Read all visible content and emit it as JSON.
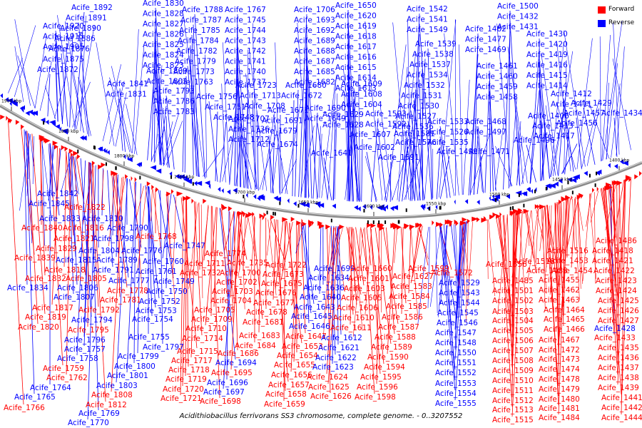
{
  "caption": "Acidithiobacillus ferrivorans SS3 chromosome, complete genome. - 0..3207552",
  "legend": {
    "forward": {
      "label": "Forward",
      "color": "#ff0000"
    },
    "reverse": {
      "label": "Reverse",
      "color": "#0000ff"
    }
  },
  "kbp_ticks": [
    "1900 kbp",
    "1850 kbp",
    "1800 kbp",
    "1750 kbp",
    "1700 kbp",
    "1650 kbp",
    "1600 kbp",
    "1550 kbp",
    "1500 kbp",
    "1450 kbp",
    "1400 kbp"
  ],
  "top_labels": [
    "Acife_1892",
    "Acife_1891",
    "Acife_1890",
    "Acife_1886",
    "Acife_1876",
    "Acife_1875",
    "Acife_1872",
    "Acife_1920",
    "Acife_1915",
    "Acife_1905",
    "Acife_1841",
    "Acife_1831",
    "Acife_1830",
    "Acife_1828",
    "Acife_1827",
    "Acife_1826",
    "Acife_1825",
    "Acife_1824",
    "Acife_1823",
    "Acife_1809",
    "Acife_1802",
    "Acife_1793",
    "Acife_1786",
    "Acife_1783",
    "Acife_1788",
    "Acife_1787",
    "Acife_1785",
    "Acife_1784",
    "Acife_1782",
    "Acife_1779",
    "Acife_1773",
    "Acife_1763",
    "Acife_1756",
    "Acife_1751",
    "Acife_1748",
    "Acife_1767",
    "Acife_1745",
    "Acife_1744",
    "Acife_1743",
    "Acife_1742",
    "Acife_1741",
    "Acife_1740",
    "Acife_1737",
    "Acife_1723",
    "Acife_1713",
    "Acife_1708",
    "Acife_1707",
    "Acife_1736",
    "Acife_1712",
    "Acife_1706",
    "Acife_1693",
    "Acife_1692",
    "Acife_1689",
    "Acife_1688",
    "Acife_1687",
    "Acife_1685",
    "Acife_1682",
    "Acife_1680",
    "Acife_1672",
    "Acife_1671",
    "Acife_1691",
    "Acife_1679",
    "Acife_1674",
    "Acife_1690",
    "Acife_1649",
    "Acife_1650",
    "Acife_1620",
    "Acife_1619",
    "Acife_1618",
    "Acife_1617",
    "Acife_1616",
    "Acife_1615",
    "Acife_1614",
    "Acife_1613",
    "Acife_1609",
    "Acife_1608",
    "Acife_1604",
    "Acife_1629",
    "Acife_1628",
    "Acife_1607",
    "Acife_1641",
    "Acife_1602",
    "Acife_1593",
    "Acife_1592",
    "Acife_1581",
    "Acife_1591",
    "Acife_1576",
    "Acife_1542",
    "Acife_1541",
    "Acife_1549",
    "Acife_1539",
    "Acife_1538",
    "Acife_1537",
    "Acife_1534",
    "Acife_1532",
    "Acife_1531",
    "Acife_1530",
    "Acife_1527",
    "Acife_1536",
    "Acife_1533",
    "Acife_1526",
    "Acife_1535",
    "Acife_1499",
    "Acife_1482",
    "Acife_1477",
    "Acife_1469",
    "Acife_1461",
    "Acife_1460",
    "Acife_1459",
    "Acife_1458",
    "Acife_1468",
    "Acife_1497",
    "Acife_1496",
    "Acife_1471",
    "Acife_1500",
    "Acife_1432",
    "Acife_1431",
    "Acife_1430",
    "Acife_1420",
    "Acife_1419",
    "Acife_1416",
    "Acife_1415",
    "Acife_1414",
    "Acife_1412",
    "Acife_1411",
    "Acife_1429",
    "Acife_1406",
    "Acife_1457",
    "Acife_1413",
    "Acife_1456",
    "Acife_1417",
    "Acife_1434",
    "Acife_1385"
  ],
  "bottom_labels": [
    "Acife_1842",
    "Acife_1845",
    "Acife_1822",
    "Acife_1833",
    "Acife_1810",
    "Acife_1840",
    "Acife_1816",
    "Acife_1790",
    "Acife_1821",
    "Acife_1798",
    "Acife_1768",
    "Acife_1829",
    "Acife_1804",
    "Acife_1776",
    "Acife_1747",
    "Acife_1839",
    "Acife_1815",
    "Acife_1789",
    "Acife_1760",
    "Acife_1818",
    "Acife_1791",
    "Acife_1761",
    "Acife_1832",
    "Acife_1805",
    "Acife_1777",
    "Acife_1749",
    "Acife_1834",
    "Acife_1806",
    "Acife_1778",
    "Acife_1750",
    "Acife_1807",
    "Acife_1781",
    "Acife_1752",
    "Acife_1817",
    "Acife_1792",
    "Acife_1753",
    "Acife_1819",
    "Acife_1794",
    "Acife_1754",
    "Acife_1820",
    "Acife_1795",
    "Acife_1755",
    "Acife_1796",
    "Acife_1757",
    "Acife_1797",
    "Acife_1758",
    "Acife_1799",
    "Acife_1759",
    "Acife_1800",
    "Acife_1762",
    "Acife_1801",
    "Acife_1764",
    "Acife_1803",
    "Acife_1765",
    "Acife_1808",
    "Acife_1766",
    "Acife_1812",
    "Acife_1769",
    "Acife_1770",
    "Acife_1774",
    "Acife_1711",
    "Acife_1732",
    "Acife_1735",
    "Acife_1700",
    "Acife_1702",
    "Acife_1703",
    "Acife_1704",
    "Acife_1705",
    "Acife_1709",
    "Acife_1710",
    "Acife_1714",
    "Acife_1715",
    "Acife_1717",
    "Acife_1718",
    "Acife_1719",
    "Acife_1720",
    "Acife_1721",
    "Acife_1722",
    "Acife_1673",
    "Acife_1675",
    "Acife_1676",
    "Acife_1677",
    "Acife_1678",
    "Acife_1681",
    "Acife_1683",
    "Acife_1684",
    "Acife_1686",
    "Acife_1694",
    "Acife_1695",
    "Acife_1696",
    "Acife_1697",
    "Acife_1698",
    "Acife_1699",
    "Acife_1634",
    "Acife_1636",
    "Acife_1640",
    "Acife_1643",
    "Acife_1645",
    "Acife_1646",
    "Acife_1647",
    "Acife_1653",
    "Acife_1654",
    "Acife_1655",
    "Acife_1656",
    "Acife_1657",
    "Acife_1658",
    "Acife_1659",
    "Acife_1660",
    "Acife_1601",
    "Acife_1603",
    "Acife_1605",
    "Acife_1606",
    "Acife_1610",
    "Acife_1611",
    "Acife_1612",
    "Acife_1621",
    "Acife_1622",
    "Acife_1623",
    "Acife_1624",
    "Acife_1625",
    "Acife_1626",
    "Acife_1627",
    "Acife_1583",
    "Acife_1584",
    "Acife_1585",
    "Acife_1586",
    "Acife_1587",
    "Acife_1588",
    "Acife_1589",
    "Acife_1590",
    "Acife_1594",
    "Acife_1595",
    "Acife_1596",
    "Acife_1598",
    "Acife_1599",
    "Acife_1572",
    "Acife_1529",
    "Acife_1543",
    "Acife_1544",
    "Acife_1545",
    "Acife_1546",
    "Acife_1547",
    "Acife_1548",
    "Acife_1550",
    "Acife_1551",
    "Acife_1552",
    "Acife_1553",
    "Acife_1554",
    "Acife_1555",
    "Acife_1556",
    "Acife_1518",
    "Acife_1483",
    "Acife_1485",
    "Acife_1501",
    "Acife_1502",
    "Acife_1503",
    "Acife_1504",
    "Acife_1505",
    "Acife_1506",
    "Acife_1507",
    "Acife_1508",
    "Acife_1509",
    "Acife_1510",
    "Acife_1511",
    "Acife_1512",
    "Acife_1513",
    "Acife_1515",
    "Acife_1516",
    "Acife_1453",
    "Acife_1454",
    "Acife_1455",
    "Acife_1462",
    "Acife_1463",
    "Acife_1464",
    "Acife_1465",
    "Acife_1466",
    "Acife_1467",
    "Acife_1472",
    "Acife_1473",
    "Acife_1474",
    "Acife_1478",
    "Acife_1479",
    "Acife_1480",
    "Acife_1481",
    "Acife_1484",
    "Acife_1486",
    "Acife_1418",
    "Acife_1421",
    "Acife_1422",
    "Acife_1423",
    "Acife_1424",
    "Acife_1425",
    "Acife_1426",
    "Acife_1427",
    "Acife_1428",
    "Acife_1433",
    "Acife_1435",
    "Acife_1436",
    "Acife_1437",
    "Acife_1438",
    "Acife_1439",
    "Acife_1441",
    "Acife_1442",
    "Acife_1444",
    "Acife_1446"
  ]
}
